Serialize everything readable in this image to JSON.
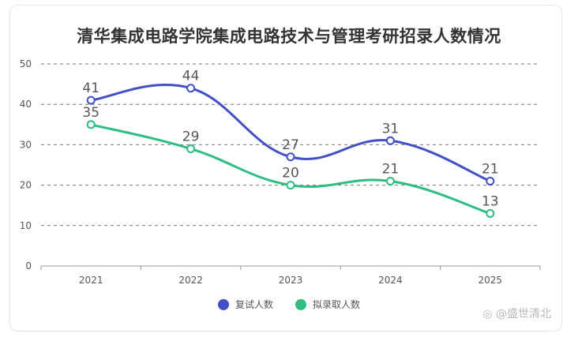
{
  "chart_data": {
    "type": "line",
    "title": "清华集成电路学院集成电路技术与管理考研招录人数情况",
    "categories": [
      "2021",
      "2022",
      "2023",
      "2024",
      "2025"
    ],
    "ylim": [
      0,
      50
    ],
    "yticks": [
      0,
      10,
      20,
      30,
      40,
      50
    ],
    "grid": true,
    "legend_position": "bottom",
    "series": [
      {
        "name": "复试人数",
        "values": [
          41,
          44,
          27,
          31,
          21
        ],
        "color": "#4250C6"
      },
      {
        "name": "拟录取人数",
        "values": [
          35,
          29,
          20,
          21,
          13
        ],
        "color": "#2EBE83"
      }
    ]
  },
  "watermark": "@盛世清北",
  "watermark_icon": "camera-icon"
}
